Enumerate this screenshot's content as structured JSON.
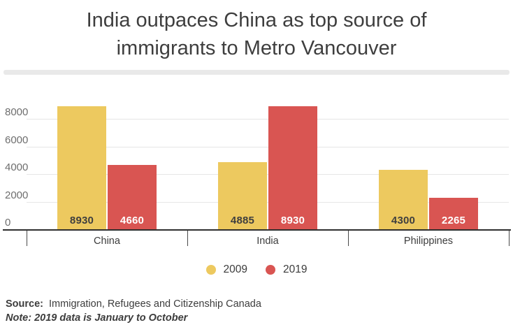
{
  "title": {
    "line1": "India outpaces China as top source of",
    "line2": "immigrants to Metro Vancouver"
  },
  "legend": {
    "items": [
      {
        "label": "2009",
        "color": "#edc95f"
      },
      {
        "label": "2019",
        "color": "#d95552"
      }
    ]
  },
  "footer": {
    "source_label": "Source:",
    "source_text": "Immigration, Refugees and Citizenship Canada",
    "note": "Note: 2019 data is January to October"
  },
  "colors": {
    "bar_2009": "#edc95f",
    "bar_2019": "#d95552",
    "gridline": "#e6e6e6",
    "axis_line": "#2f2f2f",
    "divider": "#e9e9e9",
    "axis_label_text": "#6e6e6e",
    "body_text": "#3c3c3c",
    "value_label_on_2009": "#3f3f3f",
    "value_label_on_2019": "#ffffff"
  },
  "chart_data": {
    "type": "bar",
    "title": "India outpaces China as top source of immigrants to Metro Vancouver",
    "categories": [
      "China",
      "India",
      "Philippines"
    ],
    "series": [
      {
        "name": "2009",
        "color": "#edc95f",
        "label_color": "#3f3f3f",
        "values": [
          8930,
          4885,
          4300
        ]
      },
      {
        "name": "2019",
        "color": "#d95552",
        "label_color": "#ffffff",
        "values": [
          4660,
          8930,
          2265
        ]
      }
    ],
    "yticks": [
      0,
      2000,
      4000,
      6000,
      8000
    ],
    "ylim": [
      0,
      9640
    ],
    "grid": true,
    "legend_position": "bottom",
    "xlabel": "",
    "ylabel": "",
    "source": "Source: Immigration, Refugees and Citizenship Canada",
    "note": "Note: 2019 data is January to October"
  }
}
